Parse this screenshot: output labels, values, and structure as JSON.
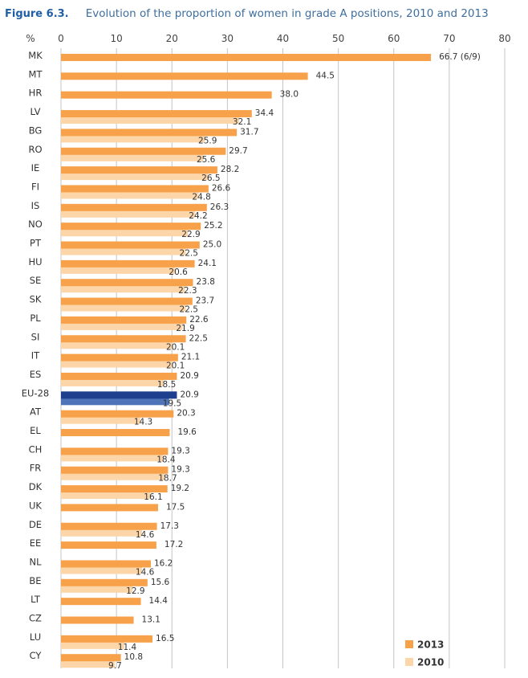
{
  "figure": {
    "label": "Figure 6.3.",
    "title": "Evolution of the proportion of women in grade A positions, 2010 and 2013"
  },
  "chart_data": {
    "type": "bar",
    "orientation": "horizontal",
    "ylabel": "%",
    "xlim": [
      0,
      80
    ],
    "ticks": [
      0,
      10,
      20,
      30,
      40,
      50,
      60,
      70,
      80
    ],
    "grid": true,
    "legend_position": "bottom-right",
    "categories": [
      "MK",
      "MT",
      "HR",
      "LV",
      "BG",
      "RO",
      "IE",
      "FI",
      "IS",
      "NO",
      "PT",
      "HU",
      "SE",
      "SK",
      "PL",
      "SI",
      "IT",
      "ES",
      "EU-28",
      "AT",
      "EL",
      "CH",
      "FR",
      "DK",
      "UK",
      "DE",
      "EE",
      "NL",
      "BE",
      "LT",
      "CZ",
      "LU",
      "CY"
    ],
    "highlight_category": "EU-28",
    "series": [
      {
        "name": "2013",
        "color": "#f7a24a",
        "highlight_color": "#1e3f8e",
        "values": [
          66.7,
          44.5,
          38.0,
          34.4,
          31.7,
          29.7,
          28.2,
          26.6,
          26.3,
          25.2,
          25.0,
          24.1,
          23.8,
          23.7,
          22.6,
          22.5,
          21.1,
          20.9,
          20.9,
          20.3,
          19.6,
          19.3,
          19.3,
          19.2,
          17.5,
          17.3,
          17.2,
          16.2,
          15.6,
          14.4,
          13.1,
          16.5,
          10.8
        ],
        "labels": [
          "66.7 (6/9)",
          "44.5",
          "38.0",
          "34.4",
          "31.7",
          "29.7",
          "28.2",
          "26.6",
          "26.3",
          "25.2",
          "25.0",
          "24.1",
          "23.8",
          "23.7",
          "22.6",
          "22.5",
          "21.1",
          "20.9",
          "20.9",
          "20.3",
          "19.6",
          "19.3",
          "19.3",
          "19.2",
          "17.5",
          "17.3",
          "17.2",
          "16.2",
          "15.6",
          "14.4",
          "13.1",
          "16.5",
          "10.8"
        ]
      },
      {
        "name": "2010",
        "color": "#fcd5a9",
        "highlight_color": "#4f73b7",
        "values": [
          null,
          null,
          null,
          32.1,
          25.9,
          25.6,
          26.5,
          24.8,
          24.2,
          22.9,
          22.5,
          20.6,
          22.3,
          22.5,
          21.9,
          20.1,
          20.1,
          18.5,
          19.5,
          14.3,
          null,
          18.4,
          18.7,
          16.1,
          null,
          14.6,
          null,
          14.6,
          12.9,
          null,
          null,
          11.4,
          9.7
        ],
        "labels": [
          null,
          null,
          null,
          "32.1",
          "25.9",
          "25.6",
          "26.5",
          "24.8",
          "24.2",
          "22.9",
          "22.5",
          "20.6",
          "22.3",
          "22.5",
          "21.9",
          "20.1",
          "20.1",
          "18.5",
          "19.5",
          "14.3",
          null,
          "18.4",
          "18.7",
          "16.1",
          null,
          "14.6",
          null,
          "14.6",
          "12.9",
          null,
          null,
          "11.4",
          "9.7"
        ]
      }
    ]
  }
}
